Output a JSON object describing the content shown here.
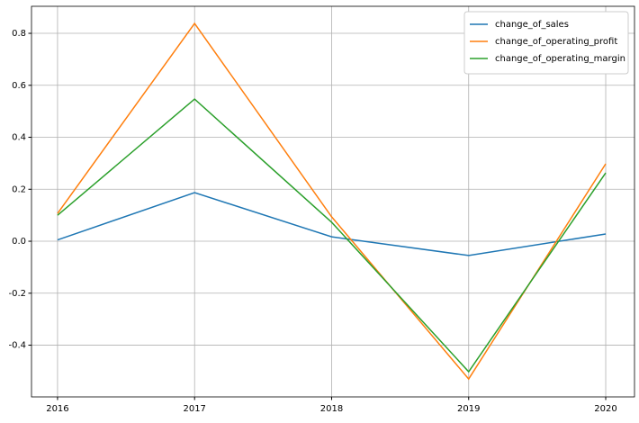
{
  "chart_data": {
    "type": "line",
    "x": [
      2016,
      2017,
      2018,
      2019,
      2020
    ],
    "series": [
      {
        "name": "change_of_sales",
        "color": "#1f77b4",
        "values": [
          0.005,
          0.187,
          0.017,
          -0.055,
          0.028
        ]
      },
      {
        "name": "change_of_operating_profit",
        "color": "#ff7f0e",
        "values": [
          0.107,
          0.838,
          0.094,
          -0.53,
          0.298
        ]
      },
      {
        "name": "change_of_operating_margin",
        "color": "#2ca02c",
        "values": [
          0.1,
          0.547,
          0.073,
          -0.502,
          0.263
        ]
      }
    ],
    "xlim": [
      2015.81,
      2020.21
    ],
    "xticks": [
      2016,
      2017,
      2018,
      2019,
      2020
    ],
    "ylim": [
      -0.599,
      0.904
    ],
    "yticks": [
      -0.4,
      -0.2,
      {
        "value": 0,
        "label": "0.0"
      },
      0.2,
      0.4,
      0.6,
      0.8
    ],
    "grid": true,
    "legend": "upper right"
  }
}
